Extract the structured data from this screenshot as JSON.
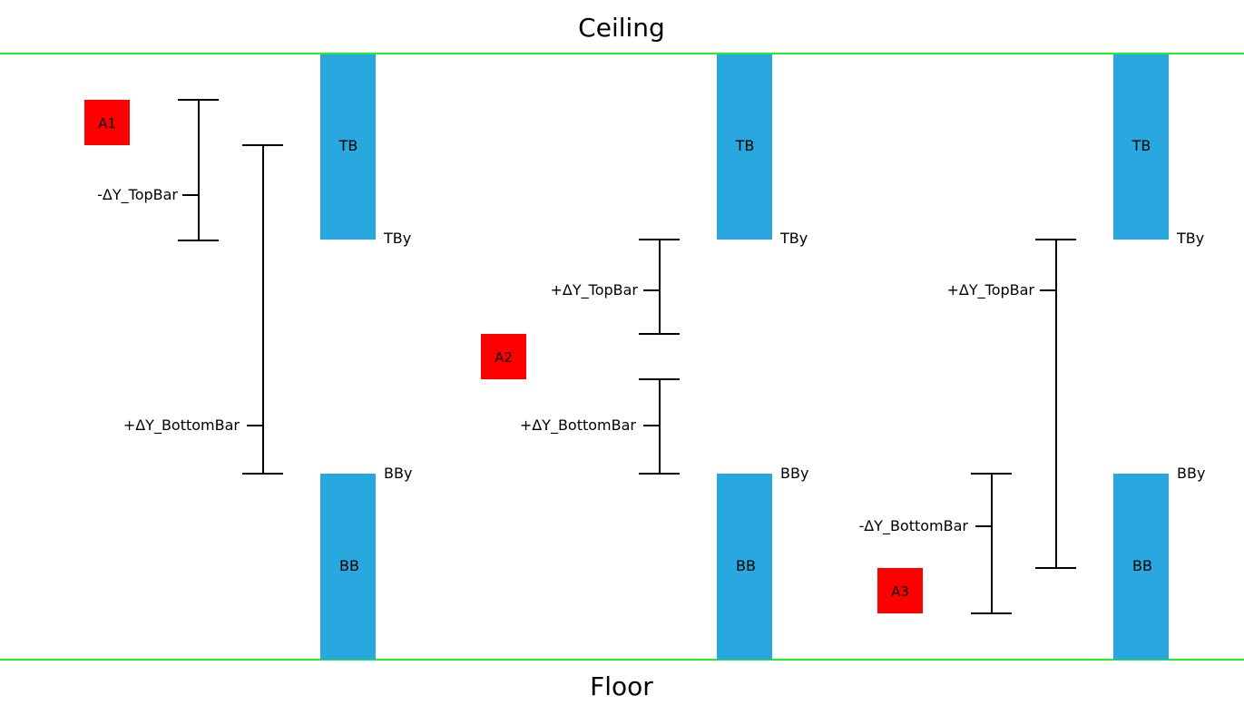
{
  "labels": {
    "ceiling": "Ceiling",
    "floor": "Floor"
  },
  "colors": {
    "boundary": "#22ee22",
    "bar": "#29a8e0",
    "agent": "#ff0000",
    "line": "#000000"
  },
  "panels": [
    {
      "top_bar": {
        "label": "TB",
        "edge_label": "TBy"
      },
      "bottom_bar": {
        "label": "BB",
        "edge_label": "BBy"
      },
      "agent": {
        "label": "A1"
      },
      "top_measure": {
        "label": "-ΔY_TopBar"
      },
      "bottom_measure": {
        "label": "+ΔY_BottomBar"
      }
    },
    {
      "top_bar": {
        "label": "TB",
        "edge_label": "TBy"
      },
      "bottom_bar": {
        "label": "BB",
        "edge_label": "BBy"
      },
      "agent": {
        "label": "A2"
      },
      "top_measure": {
        "label": "+ΔY_TopBar"
      },
      "bottom_measure": {
        "label": "+ΔY_BottomBar"
      }
    },
    {
      "top_bar": {
        "label": "TB",
        "edge_label": "TBy"
      },
      "bottom_bar": {
        "label": "BB",
        "edge_label": "BBy"
      },
      "agent": {
        "label": "A3"
      },
      "top_measure": {
        "label": "+ΔY_TopBar"
      },
      "bottom_measure": {
        "label": "-ΔY_BottomBar"
      }
    }
  ]
}
